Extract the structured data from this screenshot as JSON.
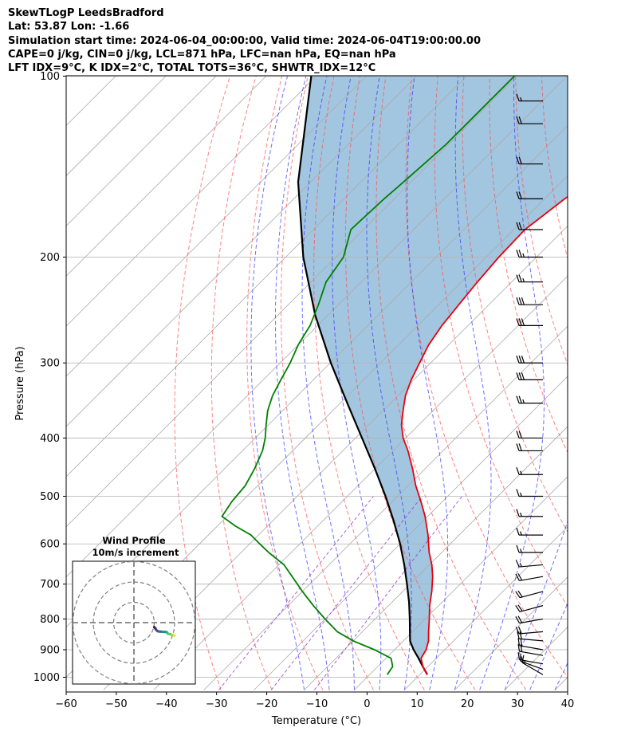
{
  "header": {
    "line1": "SkewTLogP LeedsBradford",
    "line2": "Lat: 53.87   Lon: -1.66",
    "line3": "Simulation start time: 2024-06-04_00:00:00, Valid time: 2024-06-04T19:00:00.00",
    "line4": "CAPE=0 j/kg, CIN=0 j/kg, LCL=871 hPa, LFC=nan hPa, EQ=nan hPa",
    "line5": "LFT IDX=9°C, K IDX=2°C, TOTAL TOTS=36°C, SHWTR_IDX=12°C"
  },
  "colors": {
    "temperature": "#e8000b",
    "dewpoint": "#008000",
    "parcel": "#000000",
    "cape_fill": "#a3c6e0",
    "dry_adiabat": "#ff4d4d",
    "moist_adiabat": "#3333ff",
    "isotherm": "#aaaaaa",
    "mixing_ratio": "#9933cc"
  },
  "chart_data": {
    "type": "skewt-logp",
    "xlabel": "Temperature ($^\\circ$C)",
    "ylabel": "Pressure (hPa)",
    "xlim": [
      -60,
      40
    ],
    "ylim": [
      1050,
      100
    ],
    "xticks": [
      -60,
      -50,
      -40,
      -30,
      -20,
      -10,
      0,
      10,
      20,
      30,
      40
    ],
    "yticks": [
      100,
      200,
      300,
      400,
      500,
      600,
      700,
      800,
      900,
      1000
    ],
    "grid": true,
    "y_scale": "log",
    "skew": "45 degrees",
    "temperature_profile": {
      "pressure_hPa": [
        990,
        960,
        930,
        900,
        870,
        840,
        800,
        760,
        720,
        680,
        650,
        620,
        580,
        540,
        510,
        480,
        450,
        420,
        400,
        380,
        360,
        340,
        320,
        300,
        280,
        260,
        240,
        220,
        200,
        180,
        160,
        150,
        140,
        130,
        120,
        110,
        105,
        100
      ],
      "temp_C": [
        11.5,
        9.0,
        7.0,
        6.3,
        5.0,
        3.2,
        0.8,
        -1.8,
        -4.2,
        -7.0,
        -9.5,
        -12.5,
        -16.2,
        -20.5,
        -24.3,
        -28.5,
        -32.5,
        -37.0,
        -40.5,
        -43.5,
        -46.0,
        -48.5,
        -50.5,
        -52.2,
        -54.0,
        -55.2,
        -56.0,
        -56.8,
        -57.5,
        -57.8,
        -56.0,
        -54.5,
        -52.5,
        -49.5,
        -46.0,
        -43.0,
        -42.5,
        -43.5
      ]
    },
    "dewpoint_profile": {
      "pressure_hPa": [
        990,
        960,
        930,
        900,
        870,
        840,
        800,
        760,
        720,
        680,
        650,
        620,
        600,
        580,
        560,
        540,
        510,
        480,
        450,
        420,
        400,
        380,
        360,
        340,
        320,
        300,
        280,
        260,
        240,
        220,
        200,
        180,
        160,
        150,
        140,
        130,
        120,
        110,
        100
      ],
      "dewpoint_C": [
        3.5,
        3.0,
        1.0,
        -4.0,
        -10.0,
        -15.0,
        -20.0,
        -25.0,
        -30.0,
        -35.0,
        -39.0,
        -44.5,
        -48.0,
        -51.5,
        -56.5,
        -61.0,
        -62.0,
        -62.5,
        -64.0,
        -66.0,
        -68.0,
        -70.5,
        -73.0,
        -75.0,
        -76.5,
        -78.0,
        -80.0,
        -81.5,
        -84.0,
        -87.0,
        -88.5,
        -92.5,
        -92.0,
        -91.5,
        -91.0,
        -90.5,
        -90.5,
        -90.5,
        -90.5
      ]
    },
    "parcel_profile": {
      "pressure_hPa": [
        990,
        960,
        930,
        900,
        871,
        850,
        800,
        750,
        700,
        650,
        600,
        550,
        500,
        450,
        400,
        350,
        300,
        250,
        200,
        150,
        100
      ],
      "temp_C": [
        11.5,
        9.0,
        6.5,
        3.8,
        1.4,
        0.1,
        -3.1,
        -6.6,
        -10.6,
        -15.0,
        -20.0,
        -25.8,
        -32.4,
        -40.0,
        -48.7,
        -58.6,
        -69.9,
        -82.5,
        -96.5,
        -112.5,
        -131.0
      ]
    },
    "wind_barbs": {
      "pressure_hPa": [
        990,
        970,
        950,
        920,
        900,
        870,
        840,
        800,
        760,
        720,
        680,
        650,
        620,
        580,
        540,
        500,
        460,
        420,
        400,
        350,
        320,
        300,
        260,
        240,
        220,
        200,
        180,
        160,
        140,
        120,
        110
      ],
      "speed_kt": [
        15,
        15,
        15,
        20,
        20,
        20,
        20,
        20,
        20,
        20,
        20,
        15,
        15,
        15,
        15,
        15,
        15,
        20,
        20,
        25,
        30,
        30,
        30,
        30,
        25,
        25,
        20,
        20,
        20,
        20,
        15
      ],
      "direction_deg": [
        300,
        290,
        280,
        280,
        280,
        275,
        265,
        260,
        255,
        255,
        260,
        265,
        270,
        270,
        270,
        270,
        270,
        270,
        270,
        270,
        270,
        270,
        270,
        270,
        270,
        270,
        270,
        270,
        270,
        270,
        270
      ]
    },
    "hodograph": {
      "title": "Wind Profile",
      "subtitle": "10m/s increment",
      "rings_ms": [
        10,
        20,
        30
      ],
      "u_ms": [
        6.0,
        6.5,
        7.0,
        7.5,
        8.2,
        9.5,
        10.8,
        12.0,
        13.5,
        15.5,
        17.2,
        17.5,
        18.5,
        20.3,
        22.0,
        23.3,
        24.0,
        24.6
      ],
      "v_ms": [
        4.0,
        4.6,
        5.0,
        6.0,
        7.0,
        7.8,
        8.0,
        8.0,
        8.2,
        8.3,
        8.4,
        9.0,
        10.0,
        10.3,
        11.0,
        11.5,
        11.6,
        11.5
      ]
    }
  }
}
